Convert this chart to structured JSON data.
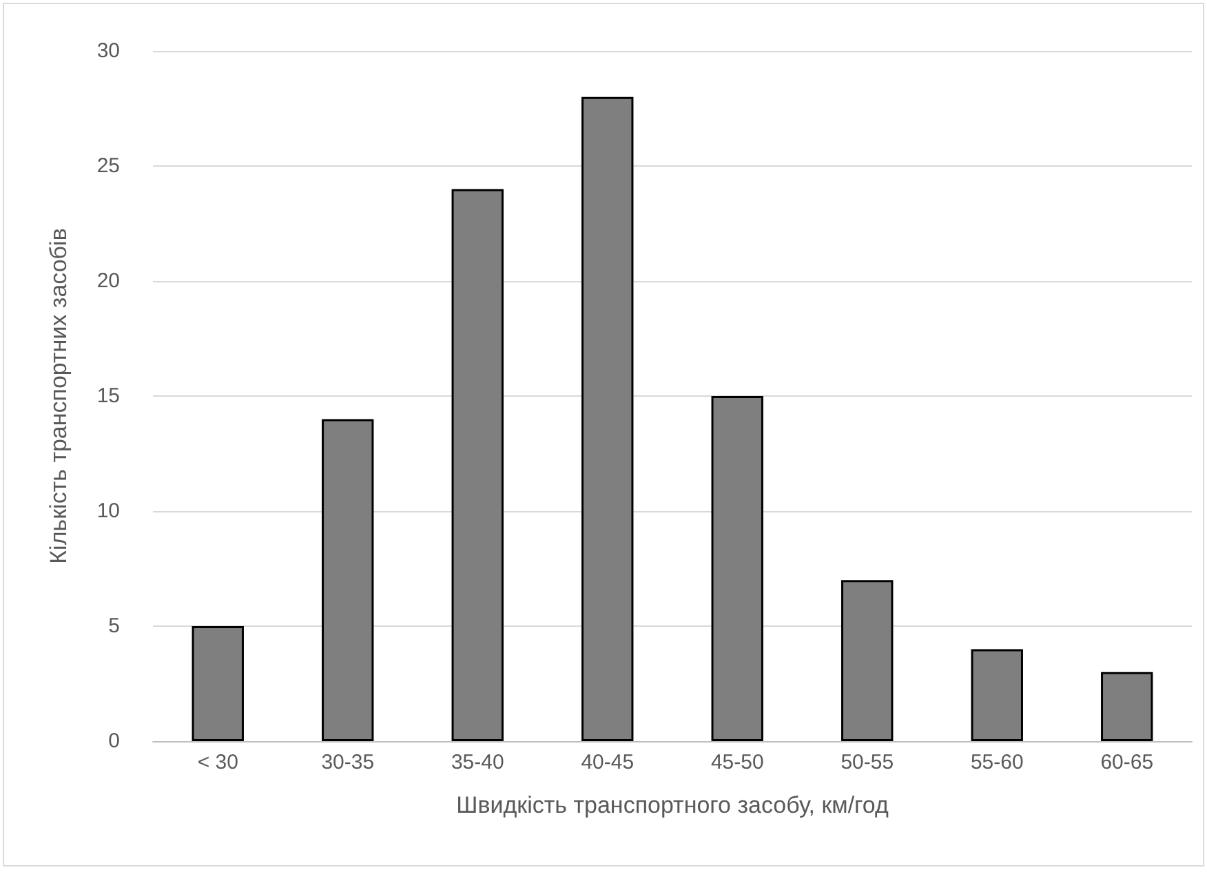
{
  "chart_data": {
    "type": "bar",
    "xlabel": "Швидкість транспортного засобу, км/год",
    "ylabel": "Кількість транспортних засобів",
    "categories": [
      "< 30",
      "30-35",
      "35-40",
      "40-45",
      "45-50",
      "50-55",
      "55-60",
      "60-65"
    ],
    "values": [
      5,
      14,
      24,
      28,
      15,
      7,
      4,
      3
    ],
    "color": "#7f7f7f",
    "ylim": [
      0,
      30
    ],
    "yticks": [
      0,
      5,
      10,
      15,
      20,
      25,
      30
    ],
    "grid": "y"
  }
}
